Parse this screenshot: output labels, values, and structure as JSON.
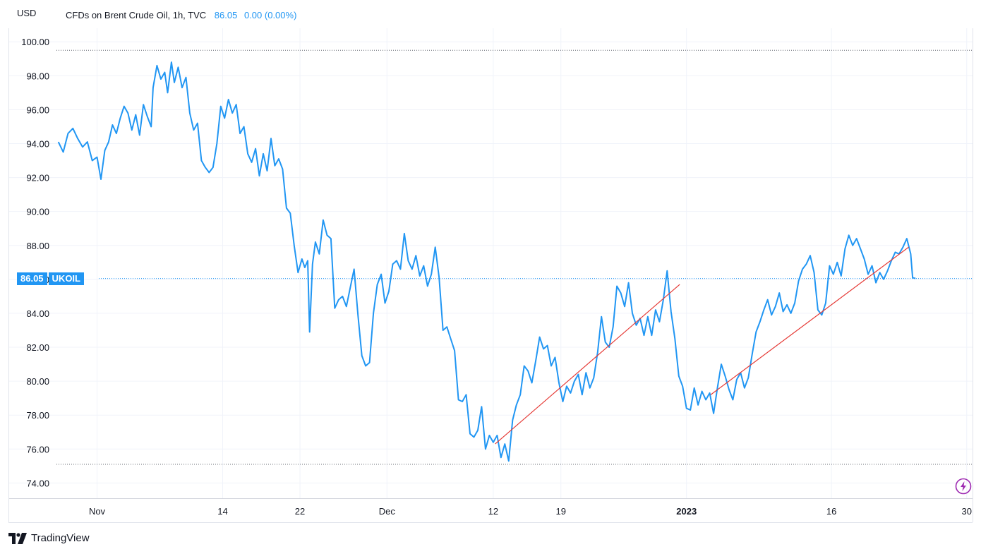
{
  "header": {
    "unit": "USD",
    "symbol": "CFDs on Brent Crude Oil, 1h, TVC",
    "last_price": "86.05",
    "change": "0.00 (0.00%)"
  },
  "price_tag": {
    "value": "86.05",
    "ticker": "UKOIL"
  },
  "brand": {
    "name": "TradingView"
  },
  "colors": {
    "series": "#2196f3",
    "trendline": "#e53935",
    "grid": "#f0f3fa",
    "bolt": "#9c27b0"
  },
  "chart_data": {
    "type": "line",
    "ylim": [
      73.1,
      100.8
    ],
    "yticks": [
      "100.00",
      "98.00",
      "96.00",
      "94.00",
      "92.00",
      "90.00",
      "88.00",
      "86.00",
      "84.00",
      "82.00",
      "80.00",
      "78.00",
      "76.00",
      "74.00"
    ],
    "xticks": [
      {
        "label": "Nov",
        "day": 0
      },
      {
        "label": "14",
        "day": 13
      },
      {
        "label": "22",
        "day": 21
      },
      {
        "label": "Dec",
        "day": 30
      },
      {
        "label": "12",
        "day": 41
      },
      {
        "label": "19",
        "day": 48
      },
      {
        "label": "2023",
        "day": 61
      },
      {
        "label": "16",
        "day": 76
      },
      {
        "label": "30",
        "day": 90
      }
    ],
    "xlim": [
      -4.2,
      90.6
    ],
    "dotted_levels": [
      99.5,
      75.1,
      86.05
    ],
    "series": [
      {
        "points": [
          [
            -4.0,
            94.1
          ],
          [
            -3.5,
            93.5
          ],
          [
            -3.0,
            94.6
          ],
          [
            -2.5,
            94.9
          ],
          [
            -2.0,
            94.3
          ],
          [
            -1.5,
            93.8
          ],
          [
            -1.0,
            94.1
          ],
          [
            -0.5,
            93.0
          ],
          [
            0.0,
            93.2
          ],
          [
            0.4,
            91.9
          ],
          [
            0.8,
            93.6
          ],
          [
            1.2,
            94.1
          ],
          [
            1.6,
            95.1
          ],
          [
            2.0,
            94.6
          ],
          [
            2.4,
            95.5
          ],
          [
            2.8,
            96.2
          ],
          [
            3.2,
            95.8
          ],
          [
            3.6,
            94.8
          ],
          [
            4.0,
            95.7
          ],
          [
            4.4,
            94.5
          ],
          [
            4.8,
            96.3
          ],
          [
            5.2,
            95.6
          ],
          [
            5.6,
            95.0
          ],
          [
            5.8,
            97.3
          ],
          [
            6.2,
            98.6
          ],
          [
            6.6,
            97.8
          ],
          [
            7.0,
            98.2
          ],
          [
            7.3,
            97.0
          ],
          [
            7.7,
            98.8
          ],
          [
            8.0,
            97.6
          ],
          [
            8.4,
            98.5
          ],
          [
            8.8,
            97.3
          ],
          [
            9.2,
            97.9
          ],
          [
            9.6,
            95.8
          ],
          [
            10.0,
            94.8
          ],
          [
            10.4,
            95.2
          ],
          [
            10.8,
            93.0
          ],
          [
            11.2,
            92.6
          ],
          [
            11.6,
            92.3
          ],
          [
            12.0,
            92.6
          ],
          [
            12.4,
            94.0
          ],
          [
            12.8,
            96.2
          ],
          [
            13.2,
            95.5
          ],
          [
            13.6,
            96.6
          ],
          [
            14.0,
            95.8
          ],
          [
            14.4,
            96.3
          ],
          [
            14.8,
            94.6
          ],
          [
            15.2,
            95.0
          ],
          [
            15.6,
            93.4
          ],
          [
            16.0,
            92.9
          ],
          [
            16.4,
            93.7
          ],
          [
            16.8,
            92.1
          ],
          [
            17.2,
            93.4
          ],
          [
            17.6,
            92.4
          ],
          [
            18.0,
            94.3
          ],
          [
            18.4,
            92.7
          ],
          [
            18.8,
            93.1
          ],
          [
            19.2,
            92.5
          ],
          [
            19.6,
            90.2
          ],
          [
            20.0,
            89.9
          ],
          [
            20.4,
            88.0
          ],
          [
            20.8,
            86.4
          ],
          [
            21.2,
            87.2
          ],
          [
            21.5,
            86.7
          ],
          [
            21.8,
            87.1
          ],
          [
            22.0,
            82.9
          ],
          [
            22.3,
            86.9
          ],
          [
            22.6,
            88.2
          ],
          [
            23.0,
            87.5
          ],
          [
            23.4,
            89.5
          ],
          [
            23.8,
            88.6
          ],
          [
            24.2,
            88.4
          ],
          [
            24.6,
            84.3
          ],
          [
            25.0,
            84.8
          ],
          [
            25.4,
            85.0
          ],
          [
            25.8,
            84.4
          ],
          [
            26.2,
            85.5
          ],
          [
            26.6,
            86.6
          ],
          [
            27.0,
            83.9
          ],
          [
            27.4,
            81.5
          ],
          [
            27.8,
            80.9
          ],
          [
            28.2,
            81.1
          ],
          [
            28.6,
            84.0
          ],
          [
            29.0,
            85.7
          ],
          [
            29.4,
            86.3
          ],
          [
            29.8,
            84.6
          ],
          [
            30.2,
            85.3
          ],
          [
            30.6,
            86.9
          ],
          [
            31.0,
            87.1
          ],
          [
            31.4,
            86.6
          ],
          [
            31.8,
            88.7
          ],
          [
            32.2,
            87.1
          ],
          [
            32.6,
            86.6
          ],
          [
            33.0,
            87.4
          ],
          [
            33.4,
            86.2
          ],
          [
            33.8,
            86.8
          ],
          [
            34.2,
            85.6
          ],
          [
            34.6,
            86.3
          ],
          [
            35.0,
            87.9
          ],
          [
            35.4,
            86.1
          ],
          [
            35.8,
            83.0
          ],
          [
            36.2,
            83.2
          ],
          [
            36.6,
            82.5
          ],
          [
            37.0,
            81.8
          ],
          [
            37.4,
            78.9
          ],
          [
            37.8,
            78.8
          ],
          [
            38.2,
            79.2
          ],
          [
            38.6,
            76.9
          ],
          [
            39.0,
            76.7
          ],
          [
            39.4,
            77.1
          ],
          [
            39.8,
            78.5
          ],
          [
            40.2,
            76.0
          ],
          [
            40.6,
            76.8
          ],
          [
            41.0,
            76.4
          ],
          [
            41.4,
            76.8
          ],
          [
            41.8,
            75.5
          ],
          [
            42.2,
            76.3
          ],
          [
            42.6,
            75.3
          ],
          [
            43.0,
            77.7
          ],
          [
            43.4,
            78.6
          ],
          [
            43.8,
            79.2
          ],
          [
            44.2,
            80.9
          ],
          [
            44.6,
            80.6
          ],
          [
            45.0,
            79.9
          ],
          [
            45.4,
            81.2
          ],
          [
            45.8,
            82.6
          ],
          [
            46.2,
            81.9
          ],
          [
            46.6,
            82.1
          ],
          [
            47.0,
            80.9
          ],
          [
            47.4,
            81.4
          ],
          [
            47.8,
            79.9
          ],
          [
            48.2,
            78.8
          ],
          [
            48.6,
            79.7
          ],
          [
            49.0,
            79.3
          ],
          [
            49.4,
            80.0
          ],
          [
            49.8,
            80.4
          ],
          [
            50.2,
            79.2
          ],
          [
            50.6,
            80.5
          ],
          [
            51.0,
            79.6
          ],
          [
            51.4,
            80.2
          ],
          [
            51.8,
            81.7
          ],
          [
            52.2,
            83.8
          ],
          [
            52.6,
            82.3
          ],
          [
            53.0,
            82.0
          ],
          [
            53.4,
            83.2
          ],
          [
            53.8,
            85.6
          ],
          [
            54.2,
            85.2
          ],
          [
            54.6,
            84.4
          ],
          [
            55.0,
            85.8
          ],
          [
            55.4,
            84.0
          ],
          [
            55.8,
            83.3
          ],
          [
            56.2,
            83.7
          ],
          [
            56.6,
            82.7
          ],
          [
            57.0,
            83.8
          ],
          [
            57.4,
            82.7
          ],
          [
            57.8,
            84.2
          ],
          [
            58.2,
            83.5
          ],
          [
            58.6,
            84.8
          ],
          [
            59.0,
            86.5
          ],
          [
            59.4,
            84.1
          ],
          [
            59.8,
            82.5
          ],
          [
            60.2,
            80.3
          ],
          [
            60.6,
            79.7
          ],
          [
            61.0,
            78.4
          ],
          [
            61.4,
            78.3
          ],
          [
            61.8,
            79.6
          ],
          [
            62.2,
            78.6
          ],
          [
            62.6,
            79.4
          ],
          [
            63.0,
            78.9
          ],
          [
            63.4,
            79.3
          ],
          [
            63.8,
            78.1
          ],
          [
            64.2,
            79.6
          ],
          [
            64.6,
            81.0
          ],
          [
            65.0,
            80.3
          ],
          [
            65.4,
            79.5
          ],
          [
            65.8,
            78.9
          ],
          [
            66.2,
            80.1
          ],
          [
            66.6,
            80.5
          ],
          [
            67.0,
            79.6
          ],
          [
            67.4,
            80.2
          ],
          [
            67.8,
            81.6
          ],
          [
            68.2,
            82.9
          ],
          [
            68.6,
            83.5
          ],
          [
            69.0,
            84.2
          ],
          [
            69.4,
            84.8
          ],
          [
            69.8,
            83.9
          ],
          [
            70.2,
            84.4
          ],
          [
            70.6,
            85.2
          ],
          [
            71.0,
            84.1
          ],
          [
            71.4,
            84.5
          ],
          [
            71.8,
            84.0
          ],
          [
            72.2,
            84.6
          ],
          [
            72.6,
            85.9
          ],
          [
            73.0,
            86.6
          ],
          [
            73.4,
            86.9
          ],
          [
            73.8,
            87.4
          ],
          [
            74.2,
            86.4
          ],
          [
            74.6,
            84.2
          ],
          [
            75.0,
            83.9
          ],
          [
            75.4,
            84.6
          ],
          [
            75.8,
            86.8
          ],
          [
            76.2,
            86.3
          ],
          [
            76.6,
            87.0
          ],
          [
            77.0,
            86.2
          ],
          [
            77.4,
            87.8
          ],
          [
            77.8,
            88.6
          ],
          [
            78.2,
            88.0
          ],
          [
            78.6,
            88.4
          ],
          [
            79.0,
            87.8
          ],
          [
            79.4,
            87.2
          ],
          [
            79.8,
            86.3
          ],
          [
            80.2,
            86.8
          ],
          [
            80.6,
            85.8
          ],
          [
            81.0,
            86.4
          ],
          [
            81.4,
            86.0
          ],
          [
            81.8,
            86.5
          ],
          [
            82.2,
            87.1
          ],
          [
            82.6,
            87.6
          ],
          [
            83.0,
            87.5
          ],
          [
            83.4,
            87.9
          ],
          [
            83.8,
            88.4
          ],
          [
            84.2,
            87.5
          ],
          [
            84.4,
            86.1
          ],
          [
            84.7,
            86.05
          ]
        ]
      }
    ],
    "trendlines": [
      [
        [
          41.2,
          76.3
        ],
        [
          60.3,
          85.7
        ]
      ],
      [
        [
          63.5,
          79.2
        ],
        [
          84.0,
          87.9
        ]
      ]
    ]
  }
}
